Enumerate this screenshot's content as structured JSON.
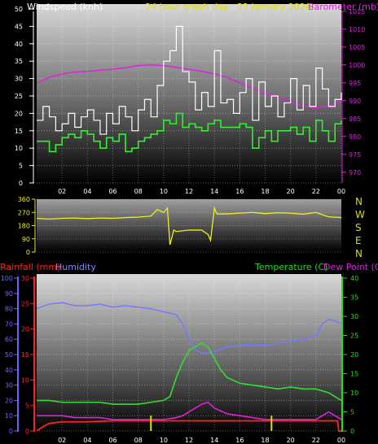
{
  "title": "24 hour graph day : 22 January 2026",
  "colors": {
    "wind": "#ffffff",
    "wind_avg": "#33ee33",
    "baro": "#dd22dd",
    "dir": "#eeee22",
    "rain": "#ff2222",
    "humidity": "#7777ff",
    "temp": "#33dd33",
    "dew": "#dd22dd",
    "rain_axis": "#ff2222",
    "hum_axis": "#6666ff",
    "temp_axis": "#22dd22",
    "marker": "#dddd00"
  },
  "chart_data": [
    {
      "type": "line",
      "labels": {
        "left": "Windspeed (knh)",
        "right": "Barometer (mb)"
      },
      "x_ticks": [
        "02",
        "04",
        "06",
        "08",
        "10",
        "12",
        "14",
        "16",
        "18",
        "20",
        "22",
        "00"
      ],
      "y_left_ticks": [
        "0",
        "5",
        "10",
        "15",
        "20",
        "25",
        "30",
        "35",
        "40",
        "45",
        "50"
      ],
      "y_left_lim": [
        0,
        50
      ],
      "y_right_ticks": [
        "970",
        "975",
        "980",
        "985",
        "990",
        "995",
        "1000",
        "1005",
        "1010",
        "1015"
      ],
      "y_right_lim": [
        967,
        1017
      ],
      "x_range": [
        0,
        24
      ],
      "series": [
        {
          "role": "wind_gust",
          "x": [
            0,
            0.5,
            1,
            1.5,
            2,
            2.5,
            3,
            3.5,
            4,
            4.5,
            5,
            5.5,
            6,
            6.5,
            7,
            7.5,
            8,
            8.5,
            9,
            9.5,
            10,
            10.5,
            11,
            11.5,
            12,
            12.5,
            13,
            13.5,
            14,
            14.5,
            15,
            15.5,
            16,
            16.5,
            17,
            17.5,
            18,
            18.5,
            19,
            19.5,
            20,
            20.5,
            21,
            21.5,
            22,
            22.5,
            23,
            23.5,
            24
          ],
          "y": [
            18,
            22,
            19,
            15,
            17,
            20,
            16,
            19,
            21,
            18,
            14,
            20,
            17,
            22,
            19,
            15,
            21,
            24,
            19,
            28,
            35,
            38,
            45,
            32,
            29,
            21,
            26,
            22,
            38,
            23,
            24,
            20,
            26,
            30,
            18,
            29,
            22,
            25,
            19,
            23,
            30,
            21,
            28,
            22,
            33,
            27,
            22,
            24,
            26
          ]
        },
        {
          "role": "wind_avg",
          "x": [
            0,
            0.5,
            1,
            1.5,
            2,
            2.5,
            3,
            3.5,
            4,
            4.5,
            5,
            5.5,
            6,
            6.5,
            7,
            7.5,
            8,
            8.5,
            9,
            9.5,
            10,
            10.5,
            11,
            11.5,
            12,
            12.5,
            13,
            13.5,
            14,
            14.5,
            15,
            15.5,
            16,
            16.5,
            17,
            17.5,
            18,
            18.5,
            19,
            19.5,
            20,
            20.5,
            21,
            21.5,
            22,
            22.5,
            23,
            23.5,
            24
          ],
          "y": [
            12,
            12,
            9,
            11,
            13,
            14,
            13,
            15,
            14,
            12,
            10,
            13,
            12,
            14,
            9,
            10,
            12,
            13,
            14,
            15,
            18,
            17,
            20,
            16,
            17,
            16,
            15,
            17,
            18,
            16,
            16,
            16,
            17,
            16,
            10,
            13,
            15,
            12,
            15,
            15,
            16,
            14,
            16,
            12,
            18,
            15,
            12,
            17,
            18
          ]
        },
        {
          "role": "barometer",
          "x": [
            0,
            1,
            2,
            3,
            4,
            5,
            6,
            7,
            8,
            9,
            10,
            11,
            12,
            13,
            14,
            15,
            16,
            17,
            18,
            19,
            20,
            21,
            22,
            23,
            24
          ],
          "y": [
            995,
            996.5,
            997.5,
            998,
            998.2,
            998.5,
            998.8,
            999.2,
            999.8,
            1000,
            999.8,
            999.3,
            998.8,
            998.2,
            997.5,
            996.5,
            995,
            993.5,
            992,
            991,
            989.5,
            988.5,
            988,
            988.5,
            990
          ]
        }
      ]
    },
    {
      "type": "line",
      "labels": {
        "compass": [
          "N",
          "W",
          "S",
          "E",
          "N"
        ]
      },
      "y_ticks": [
        "360",
        "270",
        "180",
        "90",
        "0"
      ],
      "y_lim": [
        0,
        360
      ],
      "series": [
        {
          "role": "wind_direction",
          "x": [
            0,
            1,
            2,
            3,
            4,
            5,
            6,
            7,
            8,
            9,
            9.5,
            10,
            10.3,
            10.5,
            10.8,
            11,
            12,
            13,
            13.5,
            13.7,
            14,
            14.2,
            15,
            16,
            17,
            18,
            19,
            20,
            21,
            22,
            23,
            24
          ],
          "y": [
            230,
            225,
            230,
            232,
            228,
            232,
            230,
            235,
            238,
            245,
            290,
            270,
            300,
            50,
            150,
            140,
            150,
            150,
            120,
            80,
            300,
            260,
            260,
            265,
            270,
            262,
            268,
            265,
            258,
            270,
            240,
            235
          ]
        }
      ]
    },
    {
      "type": "line",
      "labels": {
        "rain": "Rainfall (mm)",
        "humidity": "Humidity",
        "temp": "Temperature (C)",
        "dew": "Dew Point (C)"
      },
      "x_ticks": [
        "02",
        "04",
        "06",
        "08",
        "10",
        "12",
        "14",
        "16",
        "18",
        "20",
        "22",
        "00"
      ],
      "hum_ticks": [
        "0",
        "10",
        "20",
        "30",
        "40",
        "50",
        "60",
        "70",
        "80",
        "90",
        "100"
      ],
      "hum_lim": [
        0,
        100
      ],
      "rain_ticks": [
        "0",
        "5",
        "10",
        "15",
        "20",
        "25",
        "30"
      ],
      "rain_lim": [
        0,
        30
      ],
      "temp_ticks": [
        "0",
        "5",
        "10",
        "15",
        "20",
        "25",
        "30",
        "35",
        "40"
      ],
      "temp_lim": [
        0,
        40
      ],
      "series": [
        {
          "role": "humidity",
          "x": [
            0,
            1,
            2,
            3,
            4,
            5,
            6,
            7,
            8,
            9,
            10,
            11,
            11.5,
            12,
            12.5,
            13,
            13.5,
            14,
            15,
            16,
            17,
            18,
            19,
            20,
            21,
            22,
            22.5,
            23,
            23.5,
            24
          ],
          "y": [
            80,
            83,
            84,
            82,
            82,
            83,
            81,
            82,
            81,
            80,
            78,
            76,
            70,
            60,
            53,
            51,
            51,
            52,
            55,
            56,
            56,
            56,
            57,
            59,
            60,
            62,
            70,
            73,
            72,
            70
          ]
        },
        {
          "role": "temperature",
          "x": [
            0,
            1,
            2,
            3,
            4,
            5,
            6,
            7,
            8,
            9,
            10,
            10.5,
            11,
            11.5,
            12,
            12.5,
            13,
            13.5,
            14,
            14.5,
            15,
            16,
            17,
            18,
            19,
            20,
            21,
            22,
            23,
            23.5,
            24
          ],
          "y": [
            8,
            8,
            7.5,
            7.5,
            7.5,
            7.5,
            7,
            7,
            7,
            7.5,
            8,
            9,
            14,
            18,
            21,
            22,
            23,
            22,
            19,
            16,
            14,
            12.5,
            12,
            11.5,
            11,
            11.5,
            11,
            11,
            10,
            9,
            8
          ]
        },
        {
          "role": "dew_point",
          "x": [
            0,
            1,
            2,
            3,
            4,
            5,
            6,
            7,
            8,
            9,
            10,
            11,
            11.5,
            12,
            12.5,
            13,
            13.5,
            14,
            15,
            16,
            17,
            18,
            19,
            20,
            21,
            22,
            22.5,
            23,
            23.5,
            24
          ],
          "y": [
            4,
            4,
            4,
            3.5,
            3.5,
            3.5,
            3,
            3,
            3,
            3,
            3,
            3.5,
            4,
            5,
            6,
            7,
            7.5,
            6,
            4.5,
            4,
            3.5,
            3,
            3,
            3,
            3,
            3,
            4,
            5,
            4,
            3
          ]
        },
        {
          "role": "rainfall",
          "x": [
            0,
            0.3,
            0.6,
            1,
            2,
            4,
            6,
            8,
            10,
            12,
            14,
            16,
            18,
            20,
            22,
            23.7,
            23.8,
            24
          ],
          "y": [
            0,
            0.5,
            1,
            1.5,
            1.8,
            1.8,
            2,
            2,
            2,
            2,
            2,
            2,
            2,
            2,
            2,
            2,
            0,
            0
          ]
        },
        {
          "role": "rain_markers",
          "x": [
            9,
            18.5
          ],
          "y": [
            3,
            3
          ]
        }
      ]
    }
  ]
}
